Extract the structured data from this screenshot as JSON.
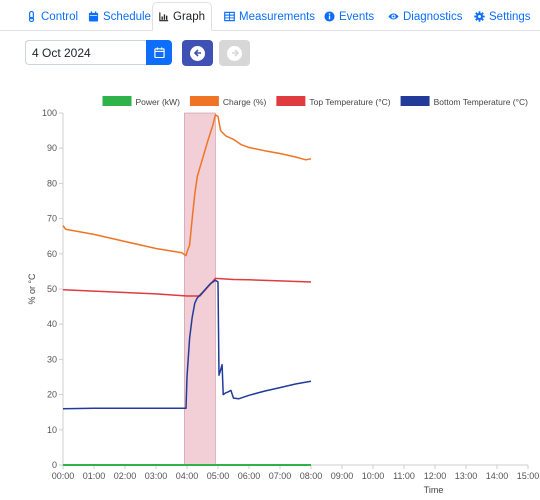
{
  "tabs": [
    {
      "label": "Control",
      "icon": "thermometer-icon",
      "active": false
    },
    {
      "label": "Schedule",
      "icon": "calendar-icon",
      "active": false
    },
    {
      "label": "Graph",
      "icon": "chart-icon",
      "active": true
    },
    {
      "label": "Measurements",
      "icon": "table-icon",
      "active": false
    },
    {
      "label": "Events",
      "icon": "info-icon",
      "active": false
    },
    {
      "label": "Diagnostics",
      "icon": "eye-icon",
      "active": false
    },
    {
      "label": "Settings",
      "icon": "gear-icon",
      "active": false
    }
  ],
  "date_picker": {
    "value": "4 Oct 2024",
    "icon": "calendar-icon"
  },
  "nav": {
    "prev_icon": "arrow-left-icon",
    "next_icon": "arrow-right-icon",
    "next_enabled": false
  },
  "colors": {
    "link": "#0d6efd",
    "prev_button": "#3f51b5",
    "highlight": "#f2cfd6"
  },
  "chart_data": {
    "type": "line",
    "xlabel": "Time",
    "ylabel": "% or °C",
    "ylim": [
      0,
      100
    ],
    "yticks": [
      0,
      10,
      20,
      30,
      40,
      50,
      60,
      70,
      80,
      90,
      100
    ],
    "xlim": [
      "00:00",
      "15:00"
    ],
    "xticks": [
      "00:00",
      "01:00",
      "02:00",
      "03:00",
      "04:00",
      "05:00",
      "06:00",
      "07:00",
      "08:00",
      "09:00",
      "10:00",
      "11:00",
      "12:00",
      "13:00",
      "14:00",
      "15:00"
    ],
    "highlight_range": [
      "03:55",
      "04:55"
    ],
    "grid": false,
    "legend_position": "top-right",
    "series": [
      {
        "name": "Power (kW)",
        "color": "#2db34a",
        "points": [
          [
            "00:00",
            0
          ],
          [
            "08:00",
            0
          ]
        ]
      },
      {
        "name": "Charge (%)",
        "color": "#ef7425",
        "points": [
          [
            "00:00",
            68
          ],
          [
            "00:05",
            67
          ],
          [
            "01:00",
            65.5
          ],
          [
            "02:00",
            63.5
          ],
          [
            "03:00",
            61.5
          ],
          [
            "03:50",
            60.3
          ],
          [
            "03:58",
            59.5
          ],
          [
            "04:00",
            60.5
          ],
          [
            "04:05",
            62.5
          ],
          [
            "04:10",
            70
          ],
          [
            "04:15",
            77
          ],
          [
            "04:20",
            82
          ],
          [
            "04:30",
            87
          ],
          [
            "04:40",
            92
          ],
          [
            "04:50",
            96.5
          ],
          [
            "04:55",
            99.5
          ],
          [
            "05:00",
            99
          ],
          [
            "05:05",
            95
          ],
          [
            "05:15",
            93.5
          ],
          [
            "05:30",
            92.5
          ],
          [
            "05:45",
            91
          ],
          [
            "06:00",
            90.2
          ],
          [
            "06:30",
            89.3
          ],
          [
            "07:00",
            88.5
          ],
          [
            "07:30",
            87.5
          ],
          [
            "07:50",
            86.7
          ],
          [
            "08:00",
            87
          ]
        ]
      },
      {
        "name": "Top Temperature (°C)",
        "color": "#e03b3f",
        "points": [
          [
            "00:00",
            49.8
          ],
          [
            "01:00",
            49.4
          ],
          [
            "02:00",
            49
          ],
          [
            "03:00",
            48.6
          ],
          [
            "04:00",
            48
          ],
          [
            "04:25",
            48
          ],
          [
            "04:55",
            53
          ],
          [
            "05:30",
            52.7
          ],
          [
            "06:00",
            52.6
          ],
          [
            "07:00",
            52.3
          ],
          [
            "08:00",
            52
          ]
        ]
      },
      {
        "name": "Bottom Temperature (°C)",
        "color": "#223a9a",
        "points": [
          [
            "00:00",
            16
          ],
          [
            "01:00",
            16.1
          ],
          [
            "02:00",
            16.1
          ],
          [
            "03:00",
            16.1
          ],
          [
            "03:58",
            16.1
          ],
          [
            "04:00",
            25
          ],
          [
            "04:05",
            36
          ],
          [
            "04:10",
            42
          ],
          [
            "04:15",
            46
          ],
          [
            "04:20",
            47.5
          ],
          [
            "04:30",
            49
          ],
          [
            "04:45",
            51.5
          ],
          [
            "04:55",
            52.5
          ],
          [
            "05:00",
            52
          ],
          [
            "05:02",
            25.5
          ],
          [
            "05:05",
            27
          ],
          [
            "05:08",
            28.5
          ],
          [
            "05:10",
            20
          ],
          [
            "05:15",
            20.5
          ],
          [
            "05:20",
            20.8
          ],
          [
            "05:25",
            21.2
          ],
          [
            "05:30",
            19
          ],
          [
            "05:40",
            18.8
          ],
          [
            "06:00",
            19.8
          ],
          [
            "06:30",
            21
          ],
          [
            "07:00",
            22
          ],
          [
            "07:30",
            23
          ],
          [
            "08:00",
            23.8
          ]
        ]
      }
    ]
  }
}
